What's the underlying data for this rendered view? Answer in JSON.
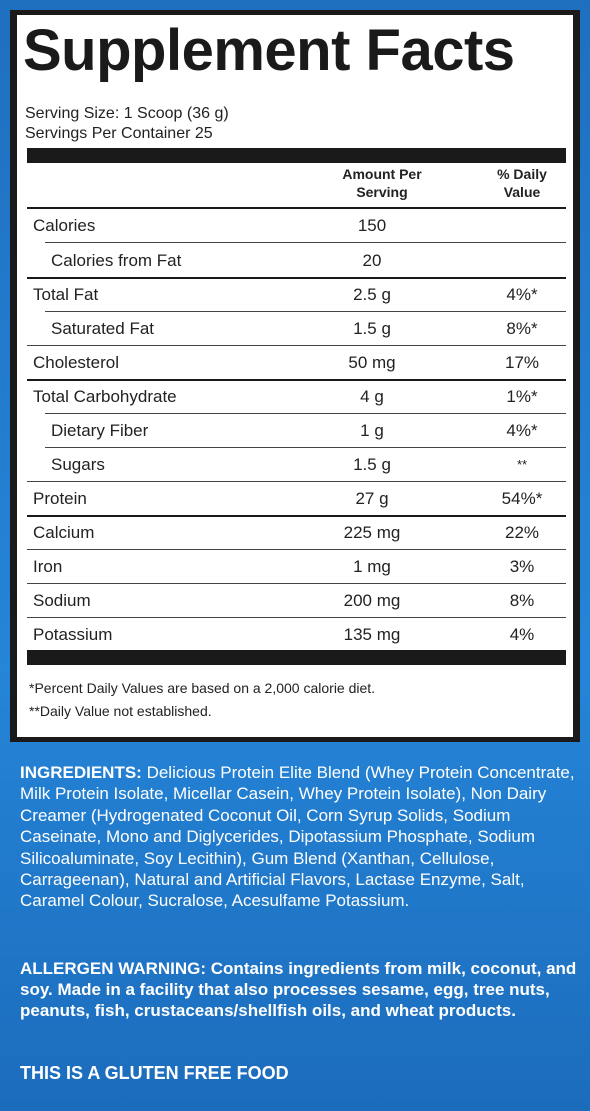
{
  "title": "Supplement Facts",
  "serving_size": "Serving Size: 1 Scoop (36 g)",
  "servings_per_container": "Servings Per Container 25",
  "columns": {
    "amount_line1": "Amount Per",
    "amount_line2": "Serving",
    "dv_line1": "% Daily",
    "dv_line2": "Value"
  },
  "rows": [
    {
      "name": "Calories",
      "amount": "150",
      "dv": ""
    },
    {
      "name": "Calories from Fat",
      "amount": "20",
      "dv": ""
    },
    {
      "name": "Total Fat",
      "amount": "2.5 g",
      "dv": "4%*"
    },
    {
      "name": "Saturated Fat",
      "amount": "1.5 g",
      "dv": "8%*"
    },
    {
      "name": "Cholesterol",
      "amount": "50 mg",
      "dv": "17%"
    },
    {
      "name": "Total Carbohydrate",
      "amount": "4 g",
      "dv": "1%*"
    },
    {
      "name": "Dietary Fiber",
      "amount": "1 g",
      "dv": "4%*"
    },
    {
      "name": "Sugars",
      "amount": "1.5 g",
      "dv": "**"
    },
    {
      "name": "Protein",
      "amount": "27 g",
      "dv": "54%*"
    },
    {
      "name": "Calcium",
      "amount": "225 mg",
      "dv": "22%"
    },
    {
      "name": "Iron",
      "amount": "1 mg",
      "dv": "3%"
    },
    {
      "name": "Sodium",
      "amount": "200 mg",
      "dv": "8%"
    },
    {
      "name": "Potassium",
      "amount": "135 mg",
      "dv": "4%"
    }
  ],
  "footnotes": {
    "percent_dv": "*Percent Daily Values are based on a 2,000 calorie diet.",
    "not_established": "**Daily Value not established."
  },
  "ingredients": {
    "label": "INGREDIENTS:",
    "text": " Delicious Protein Elite Blend (Whey Protein Concentrate, Milk Protein Isolate, Micellar Casein, Whey Protein Isolate), Non Dairy Creamer (Hydrogenated Coconut Oil, Corn Syrup Solids, Sodium Caseinate, Mono and Diglycerides, Dipotassium Phosphate, Sodium Silicoaluminate, Soy Lecithin), Gum Blend (Xanthan, Cellulose, Carrageenan), Natural and Artificial Flavors, Lactase Enzyme, Salt, Caramel Colour, Sucralose, Acesulfame Potassium."
  },
  "allergen_warning": "ALLERGEN WARNING: Contains ingredients from milk, coconut, and soy. Made in a facility that also processes sesame, egg, tree nuts, peanuts, fish, crustaceans/shellfish oils, and wheat products.",
  "gluten_free": "THIS IS A GLUTEN FREE FOOD"
}
